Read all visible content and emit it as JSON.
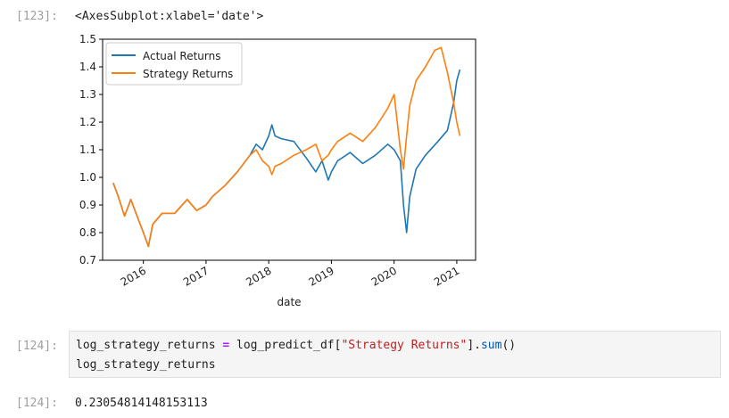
{
  "cells": {
    "cell123": {
      "out_prompt": "[123]:",
      "repr": "<AxesSubplot:xlabel='date'>"
    },
    "cell124": {
      "in_prompt": "[124]:",
      "code_line1": {
        "a": "log_strategy_returns ",
        "op": "=",
        "b": " log_predict_df[",
        "str": "\"Strategy Returns\"",
        "c": "].",
        "fn": "sum",
        "d": "()"
      },
      "code_line2": "log_strategy_returns",
      "out_prompt": "[124]:",
      "output": "0.23054814148153113"
    }
  },
  "chart_data": {
    "type": "line",
    "xlabel": "date",
    "ylabel": "",
    "xlim": [
      2015.35,
      2021.3
    ],
    "ylim": [
      0.7,
      1.5
    ],
    "x_ticks": [
      {
        "value": 2016,
        "label": "2016"
      },
      {
        "value": 2017,
        "label": "2017"
      },
      {
        "value": 2018,
        "label": "2018"
      },
      {
        "value": 2019,
        "label": "2019"
      },
      {
        "value": 2020,
        "label": "2020"
      },
      {
        "value": 2021,
        "label": "2021"
      }
    ],
    "y_ticks": [
      {
        "value": 0.7,
        "label": "0.7"
      },
      {
        "value": 0.8,
        "label": "0.8"
      },
      {
        "value": 0.9,
        "label": "0.9"
      },
      {
        "value": 1.0,
        "label": "1.0"
      },
      {
        "value": 1.1,
        "label": "1.1"
      },
      {
        "value": 1.2,
        "label": "1.2"
      },
      {
        "value": 1.3,
        "label": "1.3"
      },
      {
        "value": 1.4,
        "label": "1.4"
      },
      {
        "value": 1.5,
        "label": "1.5"
      }
    ],
    "grid": false,
    "legend_position": "top-left",
    "series": [
      {
        "name": "Actual Returns",
        "color": "#1f77b4",
        "x": [
          2015.52,
          2015.6,
          2015.7,
          2015.8,
          2015.9,
          2016.0,
          2016.08,
          2016.15,
          2016.3,
          2016.5,
          2016.7,
          2016.85,
          2017.0,
          2017.1,
          2017.3,
          2017.5,
          2017.7,
          2017.8,
          2017.9,
          2018.0,
          2018.05,
          2018.1,
          2018.2,
          2018.4,
          2018.6,
          2018.75,
          2018.85,
          2018.95,
          2019.0,
          2019.1,
          2019.3,
          2019.5,
          2019.7,
          2019.9,
          2020.0,
          2020.1,
          2020.15,
          2020.2,
          2020.25,
          2020.35,
          2020.5,
          2020.7,
          2020.85,
          2020.95,
          2021.0,
          2021.05
        ],
        "y": [
          0.98,
          0.93,
          0.86,
          0.92,
          0.86,
          0.8,
          0.75,
          0.83,
          0.87,
          0.87,
          0.92,
          0.88,
          0.9,
          0.93,
          0.97,
          1.02,
          1.08,
          1.12,
          1.1,
          1.15,
          1.19,
          1.15,
          1.14,
          1.13,
          1.07,
          1.02,
          1.06,
          0.99,
          1.02,
          1.06,
          1.09,
          1.05,
          1.08,
          1.12,
          1.1,
          1.06,
          0.9,
          0.8,
          0.93,
          1.03,
          1.08,
          1.13,
          1.17,
          1.27,
          1.35,
          1.39
        ]
      },
      {
        "name": "Strategy Returns",
        "color": "#ff7f0e",
        "x": [
          2015.52,
          2015.6,
          2015.7,
          2015.8,
          2015.9,
          2016.0,
          2016.08,
          2016.15,
          2016.3,
          2016.5,
          2016.7,
          2016.85,
          2017.0,
          2017.1,
          2017.3,
          2017.5,
          2017.7,
          2017.8,
          2017.9,
          2018.0,
          2018.05,
          2018.1,
          2018.2,
          2018.4,
          2018.6,
          2018.75,
          2018.85,
          2018.95,
          2019.0,
          2019.1,
          2019.3,
          2019.5,
          2019.7,
          2019.9,
          2020.0,
          2020.1,
          2020.15,
          2020.2,
          2020.25,
          2020.35,
          2020.5,
          2020.65,
          2020.75,
          2020.85,
          2020.95,
          2021.0,
          2021.05
        ],
        "y": [
          0.98,
          0.93,
          0.86,
          0.92,
          0.86,
          0.8,
          0.75,
          0.83,
          0.87,
          0.87,
          0.92,
          0.88,
          0.9,
          0.93,
          0.97,
          1.02,
          1.08,
          1.1,
          1.06,
          1.04,
          1.01,
          1.04,
          1.05,
          1.08,
          1.1,
          1.12,
          1.06,
          1.08,
          1.1,
          1.13,
          1.16,
          1.13,
          1.18,
          1.25,
          1.3,
          1.1,
          1.03,
          1.15,
          1.26,
          1.35,
          1.4,
          1.46,
          1.47,
          1.38,
          1.27,
          1.2,
          1.15
        ]
      }
    ]
  }
}
